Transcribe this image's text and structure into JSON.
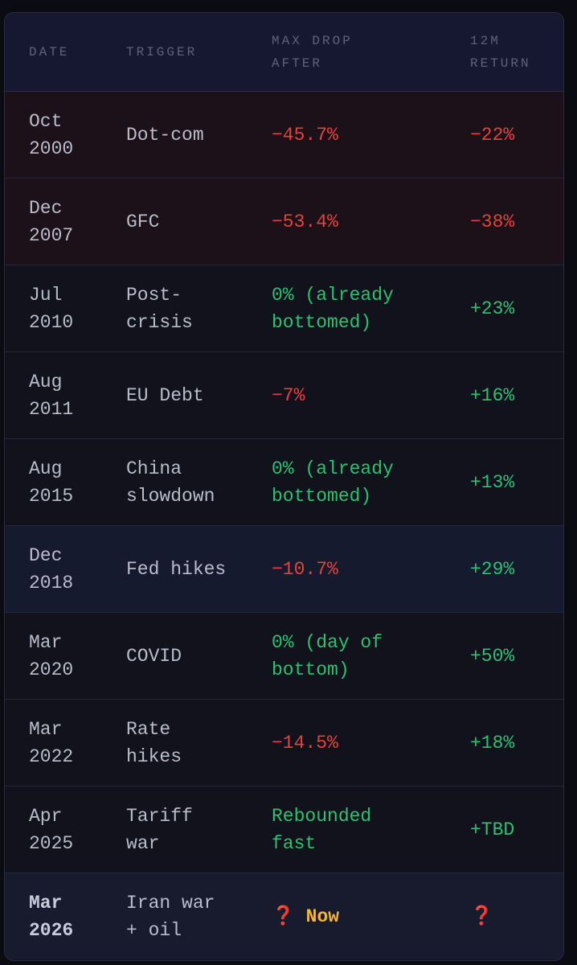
{
  "table": {
    "headers": [
      "DATE",
      "TRIGGER",
      "MAX DROP AFTER",
      "12M RETURN"
    ],
    "rows": [
      [
        "Oct 2000",
        "Dot-com",
        "−45.7%",
        "−22%"
      ],
      [
        "Dec 2007",
        "GFC",
        "−53.4%",
        "−38%"
      ],
      [
        "Jul 2010",
        "Post-crisis",
        "0% (already bottomed)",
        "+23%"
      ],
      [
        "Aug 2011",
        "EU Debt",
        "−7%",
        "+16%"
      ],
      [
        "Aug 2015",
        "China slowdown",
        "0% (already bottomed)",
        "+13%"
      ],
      [
        "Dec 2018",
        "Fed hikes",
        "−10.7%",
        "+29%"
      ],
      [
        "Mar 2020",
        "COVID",
        "0% (day of bottom)",
        "+50%"
      ],
      [
        "Mar 2022",
        "Rate hikes",
        "−14.5%",
        "+18%"
      ],
      [
        "Apr 2025",
        "Tariff war",
        "Rebounded fast",
        "+TBD"
      ],
      [
        "Mar 2026",
        "Iran war + oil",
        [
          "❓",
          "Now"
        ],
        "❓"
      ]
    ]
  }
}
